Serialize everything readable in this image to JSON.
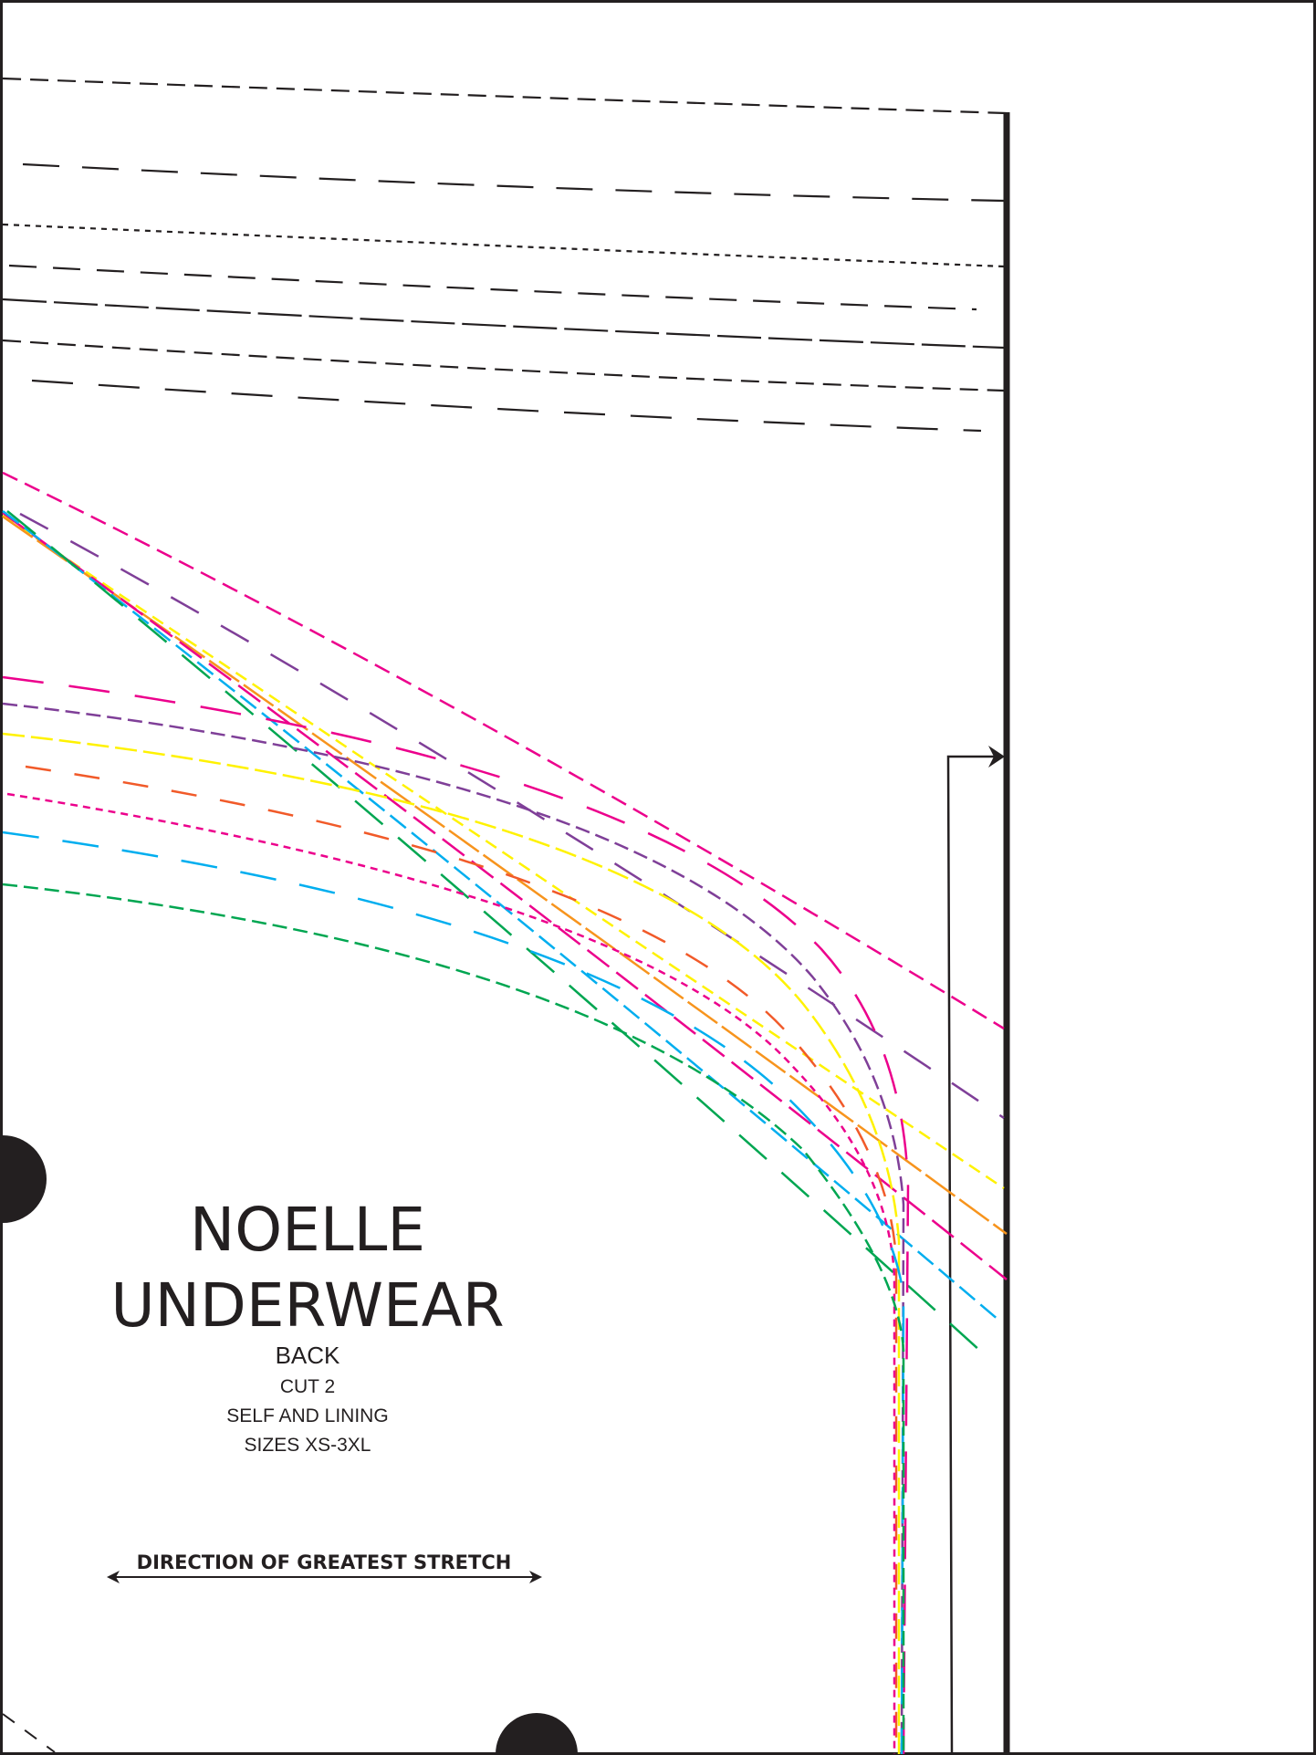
{
  "pattern_piece": {
    "title_line1": "NOELLE",
    "title_line2": "UNDERWEAR",
    "piece_name": "BACK",
    "cut_instruction": "CUT 2",
    "fabric": "SELF AND LINING",
    "sizes": "SIZES XS-3XL",
    "grainline_label": "DIRECTION OF GREATEST STRETCH"
  },
  "colors": {
    "ink": "#231f20",
    "size_lines": [
      "#ec008c",
      "#7f3f98",
      "#fff200",
      "#f7941d",
      "#f15a29",
      "#00aeef",
      "#00a651"
    ]
  }
}
